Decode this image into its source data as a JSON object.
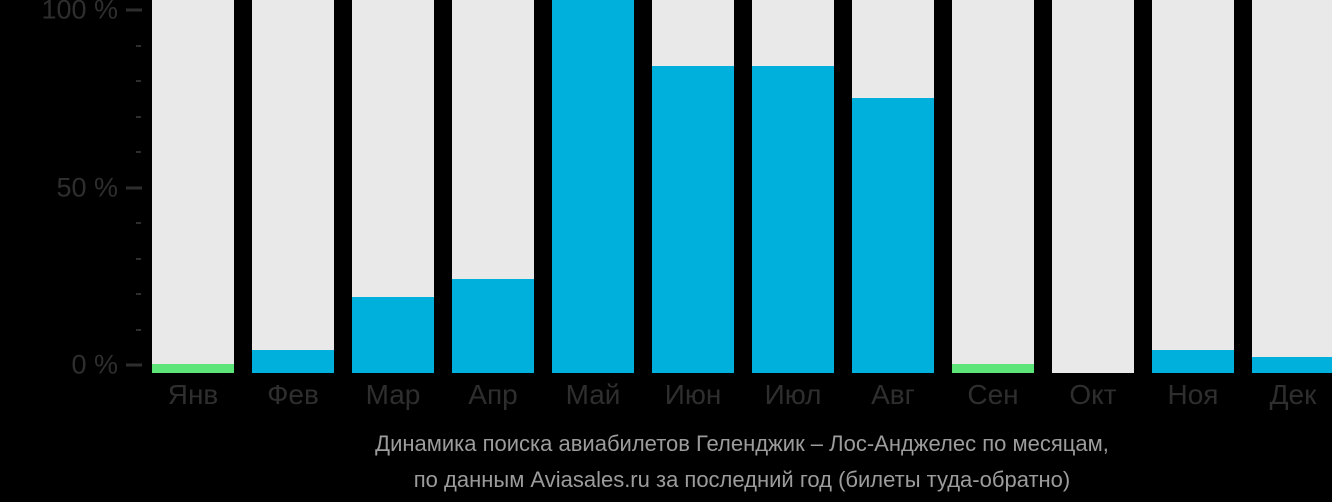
{
  "colors": {
    "background": "#000000",
    "bar_cyan": "#00b0dc",
    "bar_green": "#5ee57a",
    "bar_track": "#e9e9e9",
    "axis_text": "#2e2e2e",
    "caption_text": "#9c9c9c"
  },
  "y_axis": {
    "major_ticks": [
      {
        "value": 0,
        "label": "0 %"
      },
      {
        "value": 50,
        "label": "50 %"
      },
      {
        "value": 100,
        "label": "100 %"
      }
    ],
    "minor_tick_values": [
      10,
      20,
      30,
      40,
      60,
      70,
      80,
      90
    ]
  },
  "caption": {
    "line1": "Динамика поиска авиабилетов Геленджик – Лос-Анджелес по месяцам,",
    "line2": "по данным Aviasales.ru за последний год (билеты туда-обратно)"
  },
  "chart_data": {
    "type": "bar",
    "title": "Динамика поиска авиабилетов Геленджик – Лос-Анджелес по месяцам, по данным Aviasales.ru за последний год (билеты туда-обратно)",
    "xlabel": "",
    "ylabel": "",
    "ylim": [
      0,
      100
    ],
    "y_unit": "%",
    "grid": false,
    "legend_position": "none",
    "layout_hint": "each month has a full-height light track bar behind the value bar; value bars include a small stub below the 0% line",
    "categories": [
      "Янв",
      "Фев",
      "Мар",
      "Апр",
      "Май",
      "Июн",
      "Июл",
      "Авг",
      "Сен",
      "Окт",
      "Ноя",
      "Дек"
    ],
    "values": [
      0,
      4,
      19,
      24,
      100,
      84,
      84,
      75,
      0,
      null,
      4,
      2
    ],
    "bar_colors": [
      "green",
      "cyan",
      "cyan",
      "cyan",
      "cyan",
      "cyan",
      "cyan",
      "cyan",
      "green",
      "none",
      "cyan",
      "cyan"
    ]
  }
}
